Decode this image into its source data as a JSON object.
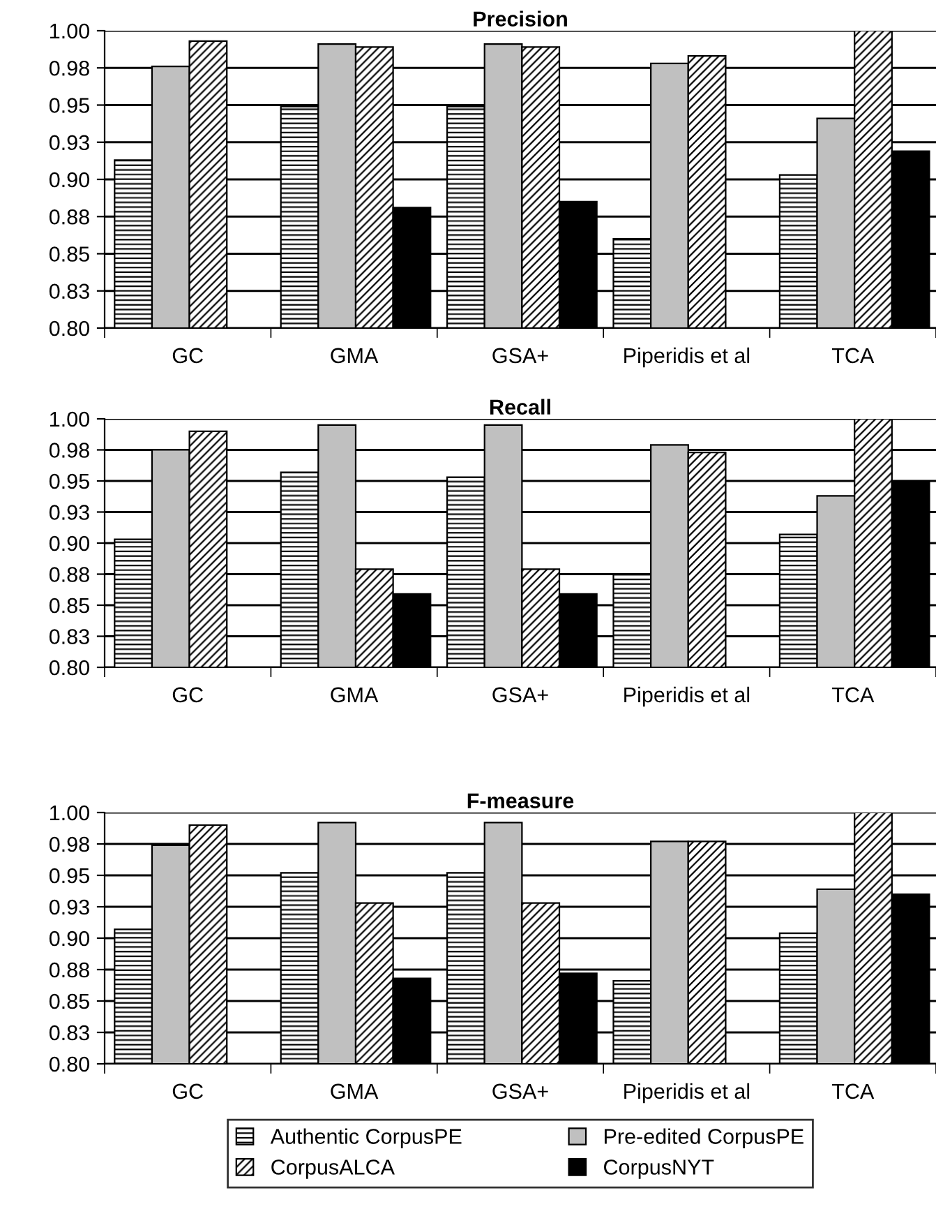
{
  "chart_data": [
    {
      "type": "bar",
      "title": "Precision",
      "categories": [
        "GC",
        "GMA",
        "GSA+",
        "Piperidis et al",
        "TCA"
      ],
      "ylim": [
        0.8,
        1.0
      ],
      "yticks": [
        {
          "value": 0.8,
          "label": "0.80"
        },
        {
          "value": 0.825,
          "label": "0.83"
        },
        {
          "value": 0.85,
          "label": "0.85"
        },
        {
          "value": 0.875,
          "label": "0.88"
        },
        {
          "value": 0.9,
          "label": "0.90"
        },
        {
          "value": 0.925,
          "label": "0.93"
        },
        {
          "value": 0.95,
          "label": "0.95"
        },
        {
          "value": 0.975,
          "label": "0.98"
        },
        {
          "value": 1.0,
          "label": "1.00"
        }
      ],
      "grid": "y",
      "legend": false,
      "series": [
        {
          "color": "#000000",
          "values": [
            0.913,
            0.949,
            0.949,
            0.86,
            0.903
          ]
        },
        {
          "color": "#c0c0c0",
          "values": [
            0.976,
            0.991,
            0.991,
            0.978,
            0.941
          ]
        },
        {
          "color": "#000000",
          "values": [
            0.993,
            0.989,
            0.989,
            0.983,
            1.0
          ]
        },
        {
          "color": "#000000",
          "values": [
            null,
            0.881,
            0.885,
            null,
            0.919
          ]
        }
      ]
    },
    {
      "type": "bar",
      "title": "Recall",
      "categories": [
        "GC",
        "GMA",
        "GSA+",
        "Piperidis et al",
        "TCA"
      ],
      "ylim": [
        0.8,
        1.0
      ],
      "yticks": [
        {
          "value": 0.8,
          "label": "0.80"
        },
        {
          "value": 0.825,
          "label": "0.83"
        },
        {
          "value": 0.85,
          "label": "0.85"
        },
        {
          "value": 0.875,
          "label": "0.88"
        },
        {
          "value": 0.9,
          "label": "0.90"
        },
        {
          "value": 0.925,
          "label": "0.93"
        },
        {
          "value": 0.95,
          "label": "0.95"
        },
        {
          "value": 0.975,
          "label": "0.98"
        },
        {
          "value": 1.0,
          "label": "1.00"
        }
      ],
      "grid": "y",
      "legend": false,
      "series": [
        {
          "color": "#000000",
          "values": [
            0.903,
            0.957,
            0.953,
            0.875,
            0.907
          ]
        },
        {
          "color": "#c0c0c0",
          "values": [
            0.975,
            0.995,
            0.995,
            0.979,
            0.938
          ]
        },
        {
          "color": "#000000",
          "values": [
            0.99,
            0.879,
            0.879,
            0.973,
            1.0
          ]
        },
        {
          "color": "#000000",
          "values": [
            null,
            0.859,
            0.859,
            null,
            0.95
          ]
        }
      ]
    },
    {
      "type": "bar",
      "title": "F-measure",
      "categories": [
        "GC",
        "GMA",
        "GSA+",
        "Piperidis et al",
        "TCA"
      ],
      "ylim": [
        0.8,
        1.0
      ],
      "yticks": [
        {
          "value": 0.8,
          "label": "0.80"
        },
        {
          "value": 0.825,
          "label": "0.83"
        },
        {
          "value": 0.85,
          "label": "0.85"
        },
        {
          "value": 0.875,
          "label": "0.88"
        },
        {
          "value": 0.9,
          "label": "0.90"
        },
        {
          "value": 0.925,
          "label": "0.93"
        },
        {
          "value": 0.95,
          "label": "0.95"
        },
        {
          "value": 0.975,
          "label": "0.98"
        },
        {
          "value": 1.0,
          "label": "1.00"
        }
      ],
      "grid": "y",
      "legend": "bottom",
      "series": [
        {
          "name": "Authentic CorpusPE",
          "color": "#000000",
          "values": [
            0.907,
            0.952,
            0.952,
            0.866,
            0.904
          ]
        },
        {
          "name": "Pre-edited CorpusPE",
          "color": "#c0c0c0",
          "values": [
            0.974,
            0.992,
            0.992,
            0.977,
            0.939
          ]
        },
        {
          "name": "CorpusALCA",
          "color": "#000000",
          "values": [
            0.99,
            0.928,
            0.928,
            0.977,
            1.0
          ]
        },
        {
          "name": "CorpusNYT",
          "color": "#000000",
          "values": [
            null,
            0.868,
            0.872,
            null,
            0.935
          ]
        }
      ]
    }
  ]
}
